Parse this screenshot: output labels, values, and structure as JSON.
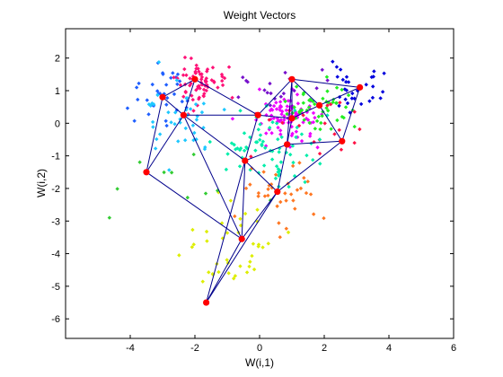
{
  "chart_data": {
    "type": "scatter",
    "title": "Weight Vectors",
    "xlabel": "W(i,1)",
    "ylabel": "W(i,2)",
    "xlim": [
      -6,
      6
    ],
    "ylim": [
      -6.6,
      2.9
    ],
    "xticks": [
      -4,
      -2,
      0,
      2,
      4,
      6
    ],
    "yticks": [
      -6,
      -5,
      -4,
      -3,
      -2,
      -1,
      0,
      1,
      2
    ],
    "xtick_labels": [
      "-4",
      "-2",
      "0",
      "2",
      "4",
      "6"
    ],
    "ytick_labels": [
      "-6",
      "-5",
      "-4",
      "-3",
      "-2",
      "-1",
      "0",
      "1",
      "2"
    ],
    "grid": false,
    "colors": {
      "neuron": "#ff0000",
      "mesh": "#00008b",
      "axes": "#000000",
      "background": "#ffffff"
    },
    "clusters": [
      {
        "color": "#0000dd",
        "center": [
          3.1,
          1.1
        ],
        "spread": [
          0.55,
          0.35
        ],
        "count": 30,
        "seed": 11
      },
      {
        "color": "#1f5fff",
        "center": [
          -3.1,
          0.9
        ],
        "spread": [
          0.45,
          0.4
        ],
        "count": 34,
        "seed": 12
      },
      {
        "color": "#ff1177",
        "center": [
          -2.0,
          1.25
        ],
        "spread": [
          0.45,
          0.35
        ],
        "count": 70,
        "seed": 13
      },
      {
        "color": "#1ec8ff",
        "center": [
          -2.4,
          0.05
        ],
        "spread": [
          0.6,
          0.55
        ],
        "count": 40,
        "seed": 14
      },
      {
        "color": "#ee00ff",
        "center": [
          0.9,
          0.2
        ],
        "spread": [
          0.5,
          0.4
        ],
        "count": 90,
        "seed": 15
      },
      {
        "color": "#7711cc",
        "center": [
          0.6,
          1.2
        ],
        "spread": [
          0.8,
          0.35
        ],
        "count": 18,
        "seed": 16
      },
      {
        "color": "#22ee22",
        "center": [
          1.8,
          0.5
        ],
        "spread": [
          0.5,
          0.45
        ],
        "count": 50,
        "seed": 17
      },
      {
        "color": "#ff1144",
        "center": [
          2.0,
          -0.2
        ],
        "spread": [
          1.2,
          0.6
        ],
        "count": 20,
        "seed": 18
      },
      {
        "color": "#00eeaa",
        "center": [
          0.2,
          -0.8
        ],
        "spread": [
          0.8,
          0.55
        ],
        "count": 70,
        "seed": 19
      },
      {
        "color": "#ff7722",
        "center": [
          0.6,
          -2.1
        ],
        "spread": [
          0.6,
          0.5
        ],
        "count": 35,
        "seed": 20
      },
      {
        "color": "#ddee00",
        "center": [
          -0.9,
          -3.8
        ],
        "spread": [
          0.7,
          0.9
        ],
        "count": 40,
        "seed": 21
      },
      {
        "color": "#33cc33",
        "center": [
          -2.8,
          -1.8
        ],
        "spread": [
          1.0,
          0.6
        ],
        "count": 10,
        "seed": 22
      }
    ],
    "neurons": [
      {
        "id": "A",
        "x": 3.1,
        "y": 1.1
      },
      {
        "id": "B",
        "x": 1.0,
        "y": 1.35
      },
      {
        "id": "C",
        "x": 1.85,
        "y": 0.55
      },
      {
        "id": "D",
        "x": 1.0,
        "y": 0.15
      },
      {
        "id": "E",
        "x": 2.55,
        "y": -0.55
      },
      {
        "id": "F",
        "x": 0.85,
        "y": -0.65
      },
      {
        "id": "G",
        "x": -0.05,
        "y": 0.25
      },
      {
        "id": "H",
        "x": -2.0,
        "y": 1.35
      },
      {
        "id": "I",
        "x": -3.0,
        "y": 0.8
      },
      {
        "id": "J",
        "x": -2.35,
        "y": 0.25
      },
      {
        "id": "K",
        "x": -0.45,
        "y": -1.15
      },
      {
        "id": "L",
        "x": -3.5,
        "y": -1.5
      },
      {
        "id": "M",
        "x": 0.55,
        "y": -2.1
      },
      {
        "id": "N",
        "x": -0.55,
        "y": -3.55
      },
      {
        "id": "O",
        "x": -1.65,
        "y": -5.5
      }
    ],
    "edges": [
      [
        "A",
        "B"
      ],
      [
        "A",
        "C"
      ],
      [
        "A",
        "E"
      ],
      [
        "B",
        "C"
      ],
      [
        "B",
        "D"
      ],
      [
        "B",
        "G"
      ],
      [
        "B",
        "F"
      ],
      [
        "C",
        "D"
      ],
      [
        "C",
        "E"
      ],
      [
        "D",
        "G"
      ],
      [
        "D",
        "F"
      ],
      [
        "E",
        "F"
      ],
      [
        "E",
        "M"
      ],
      [
        "F",
        "K"
      ],
      [
        "F",
        "M"
      ],
      [
        "G",
        "H"
      ],
      [
        "G",
        "J"
      ],
      [
        "G",
        "K"
      ],
      [
        "H",
        "I"
      ],
      [
        "H",
        "J"
      ],
      [
        "I",
        "J"
      ],
      [
        "I",
        "L"
      ],
      [
        "J",
        "L"
      ],
      [
        "J",
        "K"
      ],
      [
        "J",
        "N"
      ],
      [
        "K",
        "M"
      ],
      [
        "K",
        "N"
      ],
      [
        "K",
        "O"
      ],
      [
        "L",
        "N"
      ],
      [
        "M",
        "N"
      ],
      [
        "M",
        "O"
      ],
      [
        "N",
        "O"
      ]
    ]
  }
}
